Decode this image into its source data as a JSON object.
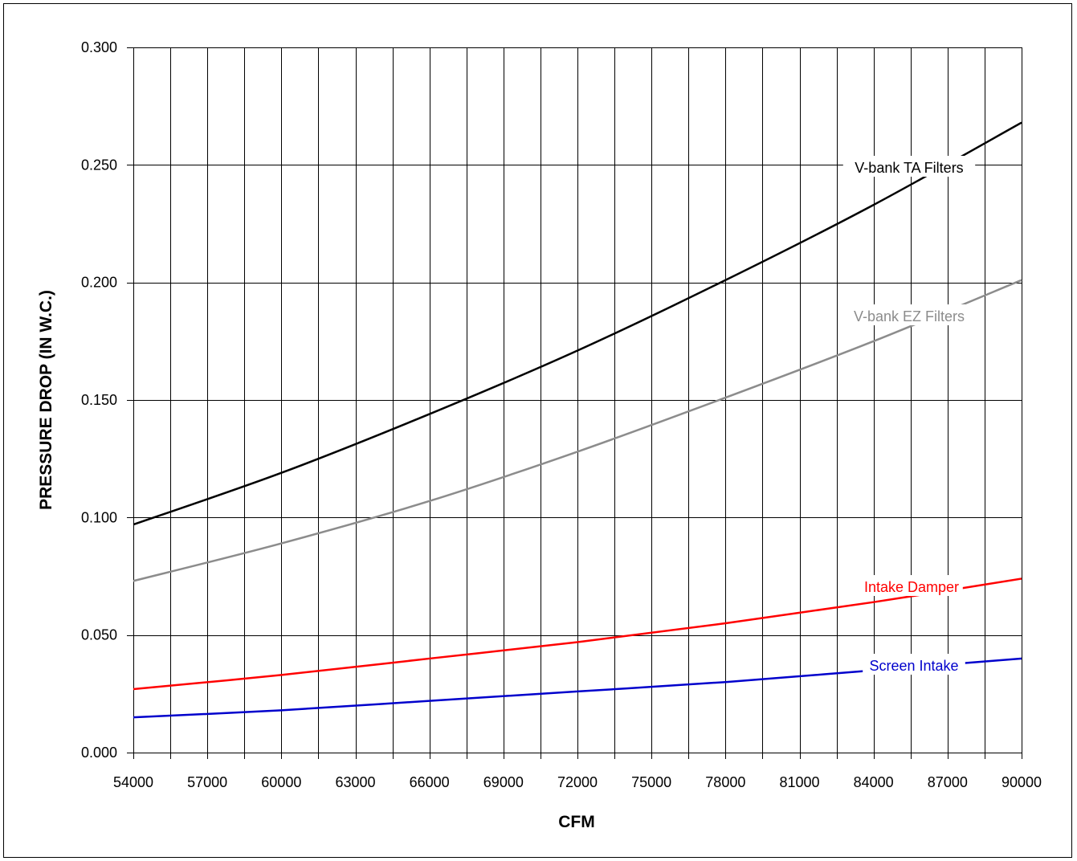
{
  "chart_data": {
    "type": "line",
    "title": "",
    "xlabel": "CFM",
    "ylabel": "PRESSURE DROP (IN W.C.)",
    "xlim": [
      54000,
      90000
    ],
    "ylim": [
      0,
      0.3
    ],
    "x_minor_step": 1500,
    "x_ticks": [
      "54000",
      "57000",
      "60000",
      "63000",
      "66000",
      "69000",
      "72000",
      "75000",
      "78000",
      "81000",
      "84000",
      "87000",
      "90000"
    ],
    "y_ticks": [
      "0.000",
      "0.050",
      "0.100",
      "0.150",
      "0.200",
      "0.250",
      "0.300"
    ],
    "grid": true,
    "series": [
      {
        "name": "V-bank TA Filters",
        "color": "#000000",
        "x": [
          54000,
          60000,
          66000,
          72000,
          78000,
          84000,
          90000
        ],
        "y": [
          0.097,
          0.119,
          0.144,
          0.171,
          0.201,
          0.233,
          0.268
        ]
      },
      {
        "name": "V-bank EZ Filters",
        "color": "#8c8c8c",
        "x": [
          54000,
          60000,
          66000,
          72000,
          78000,
          84000,
          90000
        ],
        "y": [
          0.073,
          0.089,
          0.107,
          0.128,
          0.151,
          0.175,
          0.201
        ]
      },
      {
        "name": "Intake Damper",
        "color": "#ff0000",
        "x": [
          54000,
          60000,
          66000,
          72000,
          78000,
          84000,
          90000
        ],
        "y": [
          0.027,
          0.033,
          0.04,
          0.047,
          0.055,
          0.064,
          0.074
        ]
      },
      {
        "name": "Screen Intake",
        "color": "#0000cc",
        "x": [
          54000,
          60000,
          66000,
          72000,
          78000,
          84000,
          90000
        ],
        "y": [
          0.015,
          0.018,
          0.022,
          0.026,
          0.03,
          0.035,
          0.04
        ]
      }
    ]
  }
}
